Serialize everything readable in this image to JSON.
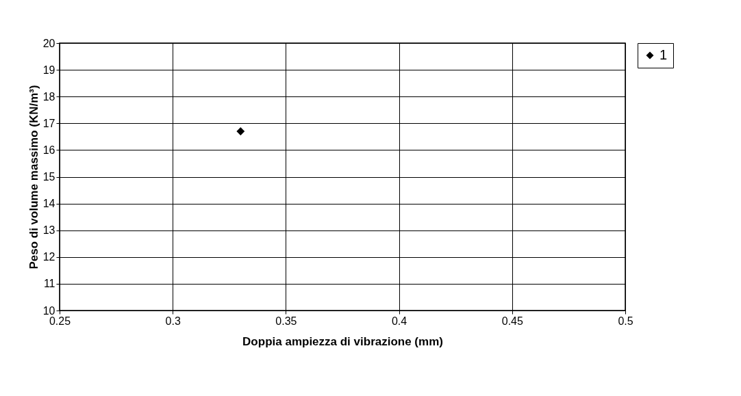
{
  "chart_data": {
    "type": "scatter",
    "xlabel": "Doppia ampiezza di vibrazione (mm)",
    "ylabel": "Peso di volume massimo (KN/m³)",
    "x": [
      0.33
    ],
    "series": [
      {
        "name": "1",
        "color": "#000000",
        "values": [
          16.7
        ]
      }
    ],
    "xlim": [
      0.25,
      0.5
    ],
    "xticks": [
      0.25,
      0.3,
      0.35,
      0.4,
      0.45,
      0.5
    ],
    "ylim": [
      10,
      20
    ],
    "yticks": [
      10,
      11,
      12,
      13,
      14,
      15,
      16,
      17,
      18,
      19,
      20
    ],
    "grid": true,
    "legend": "right",
    "marker": "diamond"
  }
}
